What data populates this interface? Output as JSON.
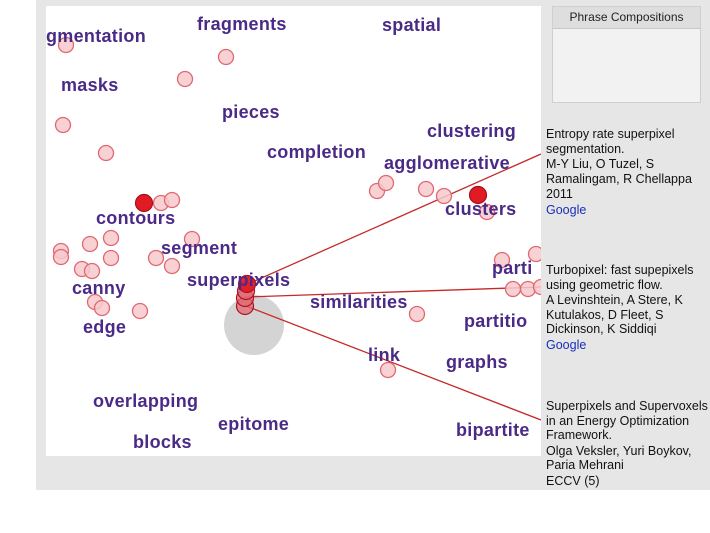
{
  "sidebar": {
    "panel_title": "Phrase Compositions",
    "papers": [
      {
        "title": "Entropy rate superpixel segmentation.",
        "authors": "M-Y Liu, O Tuzel, S Ramalingam, R Chellappa",
        "venue": "2011",
        "link": "Google"
      },
      {
        "title": "Turbopixel: fast supepixels using geometric flow.",
        "authors": "A Levinshtein, A Stere, K Kutulakos, D Fleet, S Dickinson, K Siddiqi",
        "venue": "",
        "link": "Google"
      },
      {
        "title": "Superpixels and Supervoxels in an Energy Optimization Framework.",
        "authors": "Olga Veksler, Yuri Boykov, Paria Mehrani",
        "venue": "ECCV (5)",
        "link": ""
      }
    ]
  },
  "words": [
    {
      "id": "segmentation",
      "text": "gmentation"
    },
    {
      "id": "fragments",
      "text": "fragments"
    },
    {
      "id": "spatial",
      "text": "spatial"
    },
    {
      "id": "masks",
      "text": "masks"
    },
    {
      "id": "pieces",
      "text": "pieces"
    },
    {
      "id": "clustering",
      "text": "clustering"
    },
    {
      "id": "completion",
      "text": "completion"
    },
    {
      "id": "agglomerative",
      "text": "agglomerative"
    },
    {
      "id": "clusters",
      "text": "clusters"
    },
    {
      "id": "contours",
      "text": "contours"
    },
    {
      "id": "segment",
      "text": "segment"
    },
    {
      "id": "superpixels",
      "text": "superpixels"
    },
    {
      "id": "parti",
      "text": "parti"
    },
    {
      "id": "canny",
      "text": "canny"
    },
    {
      "id": "similarities",
      "text": "similarities"
    },
    {
      "id": "partitio",
      "text": "partitio"
    },
    {
      "id": "edge",
      "text": "edge"
    },
    {
      "id": "link",
      "text": "link"
    },
    {
      "id": "graphs",
      "text": "graphs"
    },
    {
      "id": "overlapping",
      "text": "overlapping"
    },
    {
      "id": "epitome",
      "text": "epitome"
    },
    {
      "id": "bipartite",
      "text": "bipartite"
    },
    {
      "id": "blocks",
      "text": "blocks"
    }
  ],
  "colors": {
    "word": "#4a2a86",
    "marker_fill": "#f6c9cd",
    "marker_stroke": "#e06870",
    "marker_active": "#e01b24",
    "connector": "#c42a2a",
    "lens": "#d4d4d4"
  }
}
